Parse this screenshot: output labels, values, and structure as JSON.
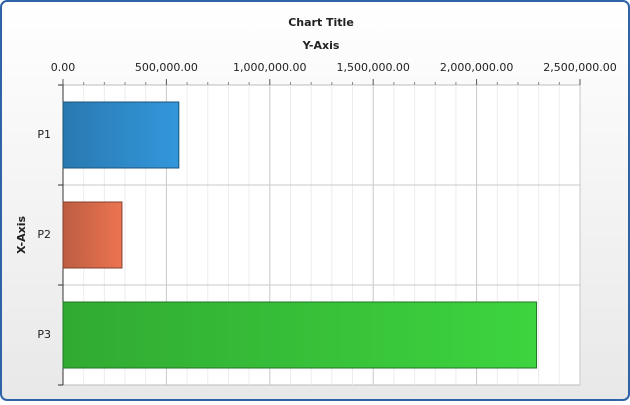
{
  "chart_data": {
    "type": "bar",
    "orientation": "horizontal",
    "title": "Chart Title",
    "y_axis_label": "Y-Axis",
    "x_axis_label": "X-Axis",
    "categories": [
      "P1",
      "P2",
      "P3"
    ],
    "values": [
      560000,
      285000,
      2290000
    ],
    "colors": [
      "#3397dc",
      "#ec7451",
      "#3dd43f"
    ],
    "ylim": [
      0,
      2500000
    ],
    "yticks": [
      {
        "value": 0,
        "label": "0.00"
      },
      {
        "value": 500000,
        "label": "500,000.00"
      },
      {
        "value": 1000000,
        "label": "1,000,000.00"
      },
      {
        "value": 1500000,
        "label": "1,500,000.00"
      },
      {
        "value": 2000000,
        "label": "2,000,000.00"
      },
      {
        "value": 2500000,
        "label": "2,500,000.00"
      }
    ],
    "grid": true,
    "minor_grid": true
  }
}
